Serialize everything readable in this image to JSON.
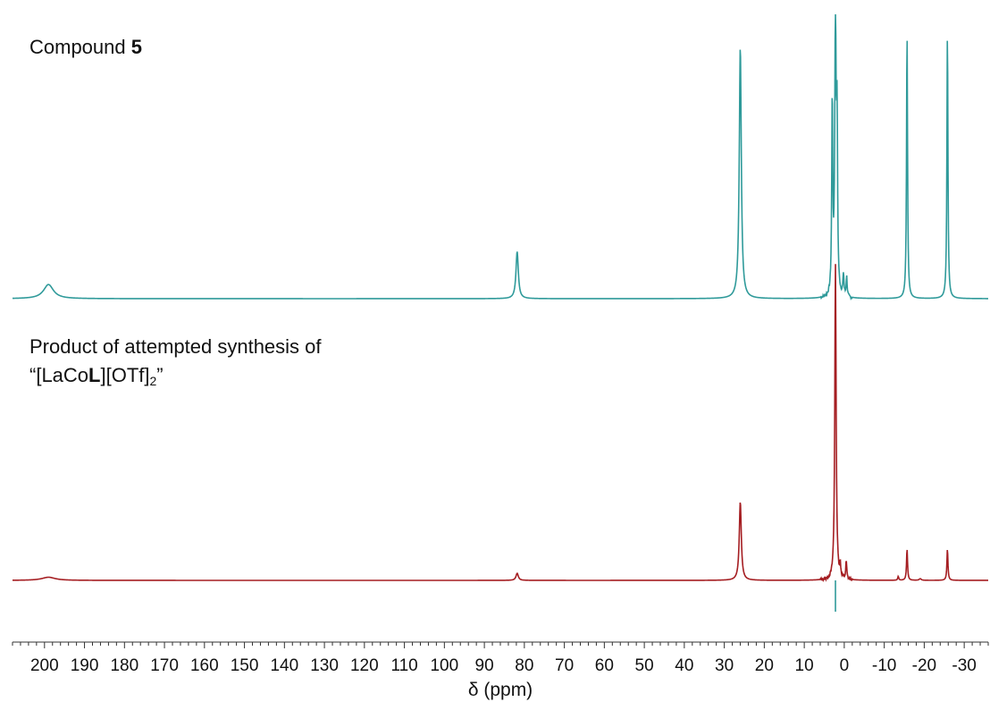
{
  "labels": {
    "top_trace": {
      "prefix": "Compound ",
      "bold": "5"
    },
    "bottom_trace": {
      "line1": "Product of attempted synthesis of",
      "line2_open": "“[LaCo",
      "line2_bold": "L",
      "line2_mid": "][OTf]",
      "line2_sub": "2",
      "line2_close": "”"
    }
  },
  "colors": {
    "teal": "#2f9a9a",
    "red": "#a51e22",
    "axis": "#333333"
  },
  "chart_data": {
    "type": "line",
    "xlabel": "δ (ppm)",
    "xlim": [
      208,
      -36
    ],
    "x_reversed": true,
    "x_ticks": [
      200,
      190,
      180,
      170,
      160,
      150,
      140,
      130,
      120,
      110,
      100,
      90,
      80,
      70,
      60,
      50,
      40,
      30,
      20,
      10,
      0,
      -10,
      -20,
      -30
    ],
    "x_tick_labels": [
      "200",
      "190",
      "180",
      "170",
      "160",
      "150",
      "140",
      "130",
      "120",
      "110",
      "100",
      "90",
      "80",
      "70",
      "60",
      "50",
      "40",
      "30",
      "20",
      "10",
      "0",
      "-10",
      "-20",
      "-30"
    ],
    "grid": false,
    "series": [
      {
        "trace": "top",
        "color": "#2f9a9a",
        "peaks": [
          {
            "x": 199.0,
            "height": 0.18,
            "width": 1.5
          },
          {
            "x": 81.8,
            "height": 0.6,
            "width": 0.35
          },
          {
            "x": 26.0,
            "height": 3.2,
            "width": 0.3
          },
          {
            "x": 3.0,
            "height": 2.5,
            "width": 0.15
          },
          {
            "x": 2.2,
            "height": 3.6,
            "width": 0.2
          },
          {
            "x": 1.8,
            "height": 2.0,
            "width": 0.15
          },
          {
            "x": 0.2,
            "height": 0.28,
            "width": 0.15
          },
          {
            "x": -0.6,
            "height": 0.25,
            "width": 0.15
          },
          {
            "x": -15.7,
            "height": 3.4,
            "width": 0.15
          },
          {
            "x": -25.8,
            "height": 3.4,
            "width": 0.15
          }
        ]
      },
      {
        "trace": "bottom",
        "color": "#a51e22",
        "peaks": [
          {
            "x": 199.0,
            "height": 0.04,
            "width": 2.0
          },
          {
            "x": 81.8,
            "height": 0.09,
            "width": 0.35
          },
          {
            "x": 26.0,
            "height": 1.0,
            "width": 0.3
          },
          {
            "x": 2.2,
            "height": 4.0,
            "width": 0.2
          },
          {
            "x": 1.0,
            "height": 0.15,
            "width": 0.15
          },
          {
            "x": -0.5,
            "height": 0.23,
            "width": 0.15
          },
          {
            "x": -13.5,
            "height": 0.05,
            "width": 0.15
          },
          {
            "x": -15.7,
            "height": 0.4,
            "width": 0.15
          },
          {
            "x": -19.0,
            "height": 0.02,
            "width": 0.3
          },
          {
            "x": -25.8,
            "height": 0.4,
            "width": 0.15
          }
        ]
      }
    ]
  }
}
